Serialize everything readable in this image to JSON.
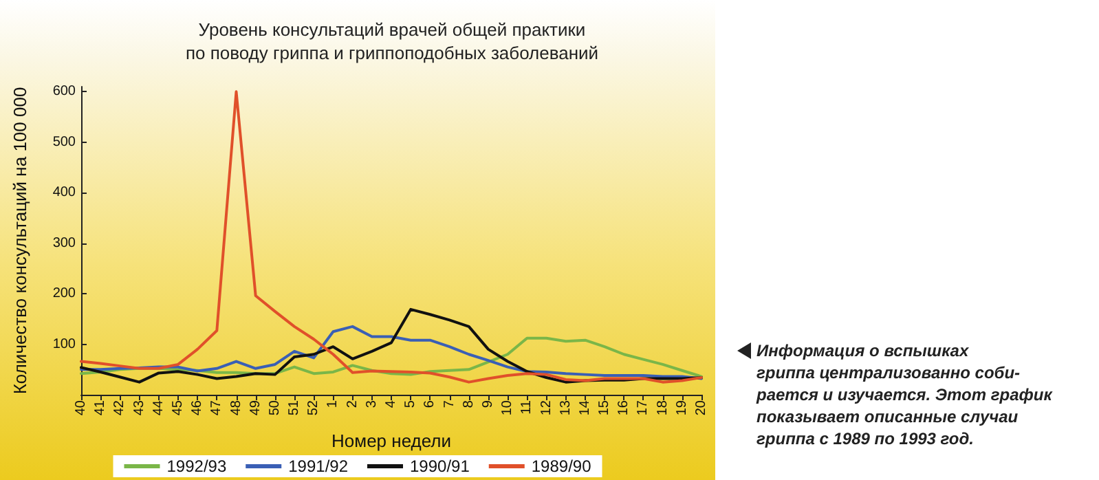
{
  "chart_data": {
    "type": "line",
    "title": "Уровень консультаций врачей общей практики\nпо поводу гриппа и гриппоподобных заболеваний",
    "xlabel": "Номер недели",
    "ylabel": "Количество консультаций на 100 000",
    "categories": [
      "40",
      "41",
      "42",
      "43",
      "44",
      "45",
      "46",
      "47",
      "48",
      "49",
      "50",
      "51",
      "52",
      "1",
      "2",
      "3",
      "4",
      "5",
      "6",
      "7",
      "8",
      "9",
      "10",
      "11",
      "12",
      "13",
      "14",
      "15",
      "16",
      "17",
      "18",
      "19",
      "20"
    ],
    "series": [
      {
        "name": "1992/93",
        "color": "#7ab648",
        "values": [
          42,
          45,
          50,
          52,
          52,
          50,
          48,
          44,
          44,
          42,
          42,
          55,
          42,
          45,
          58,
          48,
          42,
          40,
          46,
          48,
          50,
          65,
          80,
          112,
          112,
          106,
          108,
          95,
          80,
          70,
          60,
          48,
          36
        ]
      },
      {
        "name": "1991/92",
        "color": "#3a5fb5",
        "values": [
          50,
          50,
          52,
          53,
          55,
          55,
          47,
          52,
          66,
          52,
          60,
          86,
          73,
          125,
          135,
          115,
          115,
          108,
          108,
          95,
          80,
          68,
          55,
          46,
          45,
          42,
          40,
          38,
          38,
          38,
          36,
          36,
          32
        ]
      },
      {
        "name": "1990/91",
        "color": "#111111",
        "values": [
          54,
          45,
          35,
          25,
          43,
          46,
          40,
          32,
          36,
          42,
          40,
          75,
          80,
          95,
          71,
          86,
          103,
          169,
          159,
          148,
          135,
          90,
          66,
          46,
          34,
          25,
          28,
          29,
          29,
          32,
          32,
          32,
          34
        ]
      },
      {
        "name": "1989/90",
        "color": "#e0502a",
        "values": [
          66,
          62,
          57,
          52,
          52,
          60,
          90,
          127,
          600,
          196,
          165,
          135,
          110,
          80,
          44,
          47,
          46,
          45,
          43,
          35,
          25,
          32,
          38,
          42,
          40,
          30,
          28,
          32,
          32,
          32,
          25,
          28,
          34
        ]
      }
    ],
    "ylim": [
      0,
      610
    ],
    "yticks": [
      100,
      200,
      300,
      400,
      500,
      600
    ],
    "grid": false,
    "legend": "bottom",
    "marker": "none",
    "line_style": "solid",
    "annotations": [
      "Информация о вспышках\nгриппа централизованно соби-\nрается и изучается. Этот график\nпоказывает описанные случаи\nгриппа с 1989 по 1993 год."
    ]
  }
}
